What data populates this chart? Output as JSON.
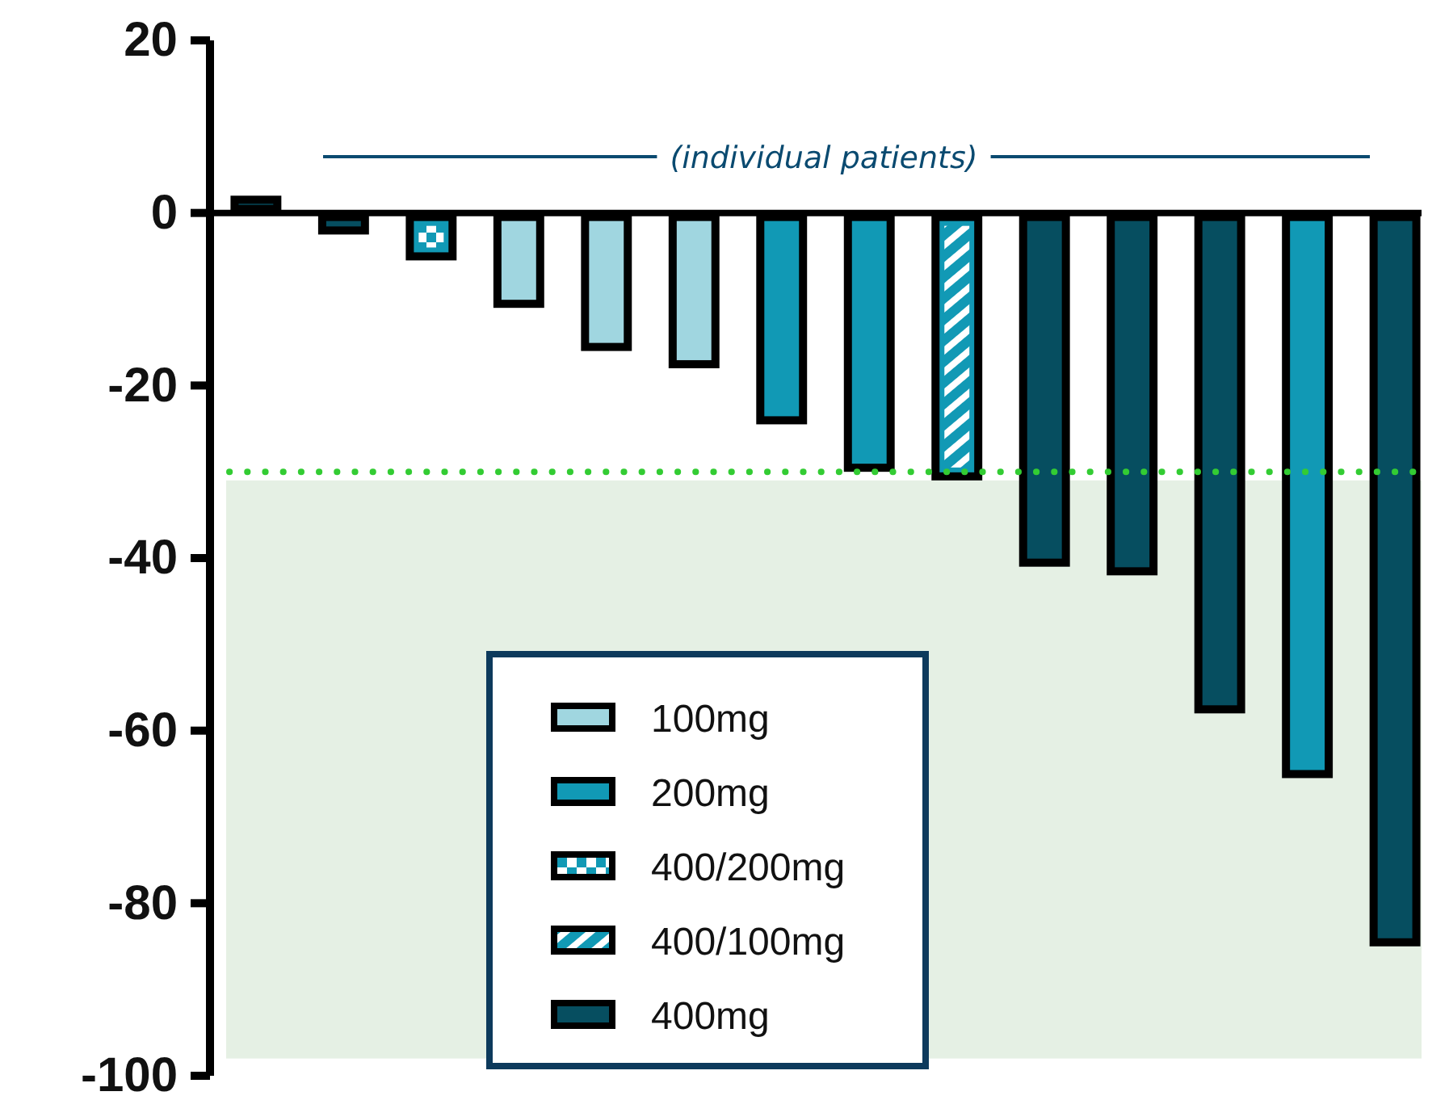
{
  "chart_data": {
    "type": "bar",
    "categories": [
      null,
      null,
      null,
      null,
      null,
      null,
      null,
      null,
      null,
      null,
      null,
      null,
      null,
      null
    ],
    "series": [
      {
        "name": "100mg",
        "color": "#a0d6e0",
        "values": [
          null,
          null,
          null,
          -11,
          -16,
          -18,
          null,
          null,
          null,
          null,
          null,
          null,
          null,
          null
        ]
      },
      {
        "name": "200mg",
        "color": "#1199b5",
        "values": [
          null,
          null,
          null,
          null,
          null,
          null,
          -24.5,
          -30,
          null,
          null,
          null,
          null,
          -65.5,
          null
        ]
      },
      {
        "name": "400/200mg",
        "color": "#1199b5",
        "values": [
          null,
          null,
          -5.5,
          null,
          null,
          null,
          null,
          null,
          null,
          null,
          null,
          null,
          null,
          null
        ]
      },
      {
        "name": "400/100mg",
        "color": "#1199b5",
        "values": [
          null,
          null,
          null,
          null,
          null,
          null,
          null,
          null,
          -31,
          null,
          null,
          null,
          null,
          null
        ]
      },
      {
        "name": "400mg",
        "color": "#064e60",
        "values": [
          2,
          -2.5,
          null,
          null,
          null,
          null,
          null,
          null,
          null,
          -41,
          -42,
          -58,
          null,
          -85
        ]
      }
    ],
    "ylim": [
      -100,
      20
    ],
    "yticks": [
      -100,
      -80,
      -60,
      -40,
      -20,
      0,
      20
    ],
    "ref_lines": [
      {
        "axis": "y",
        "value": -30,
        "color": "#33cc33",
        "line_style": "dotted"
      }
    ],
    "bands": [
      {
        "axis": "y",
        "from": -98,
        "to": -31,
        "color": "#e5f0e4"
      }
    ],
    "annotations": [
      "(individual patients)"
    ],
    "legend": "bottom"
  }
}
